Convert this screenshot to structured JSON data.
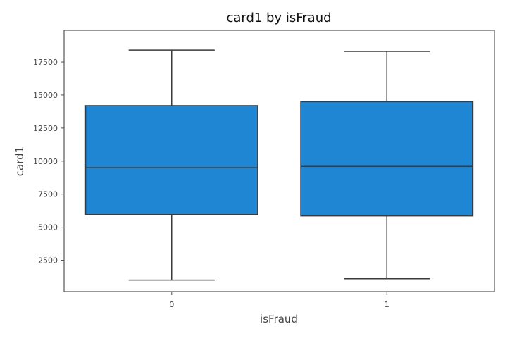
{
  "chart_data": {
    "type": "box",
    "title": "card1 by isFraud",
    "xlabel": "isFraud",
    "ylabel": "card1",
    "categories": [
      "0",
      "1"
    ],
    "boxes": [
      {
        "category": "0",
        "whisker_low": 1000,
        "q1": 5950,
        "median": 9500,
        "q3": 14200,
        "whisker_high": 18400
      },
      {
        "category": "1",
        "whisker_low": 1100,
        "q1": 5850,
        "median": 9600,
        "q3": 14500,
        "whisker_high": 18300
      }
    ],
    "y_ticks": [
      2500,
      5000,
      7500,
      10000,
      12500,
      15000,
      17500
    ],
    "ylim": [
      130,
      19900
    ],
    "box_color": "#1f86d3",
    "line_color": "#3a3a3a",
    "grid": false
  }
}
